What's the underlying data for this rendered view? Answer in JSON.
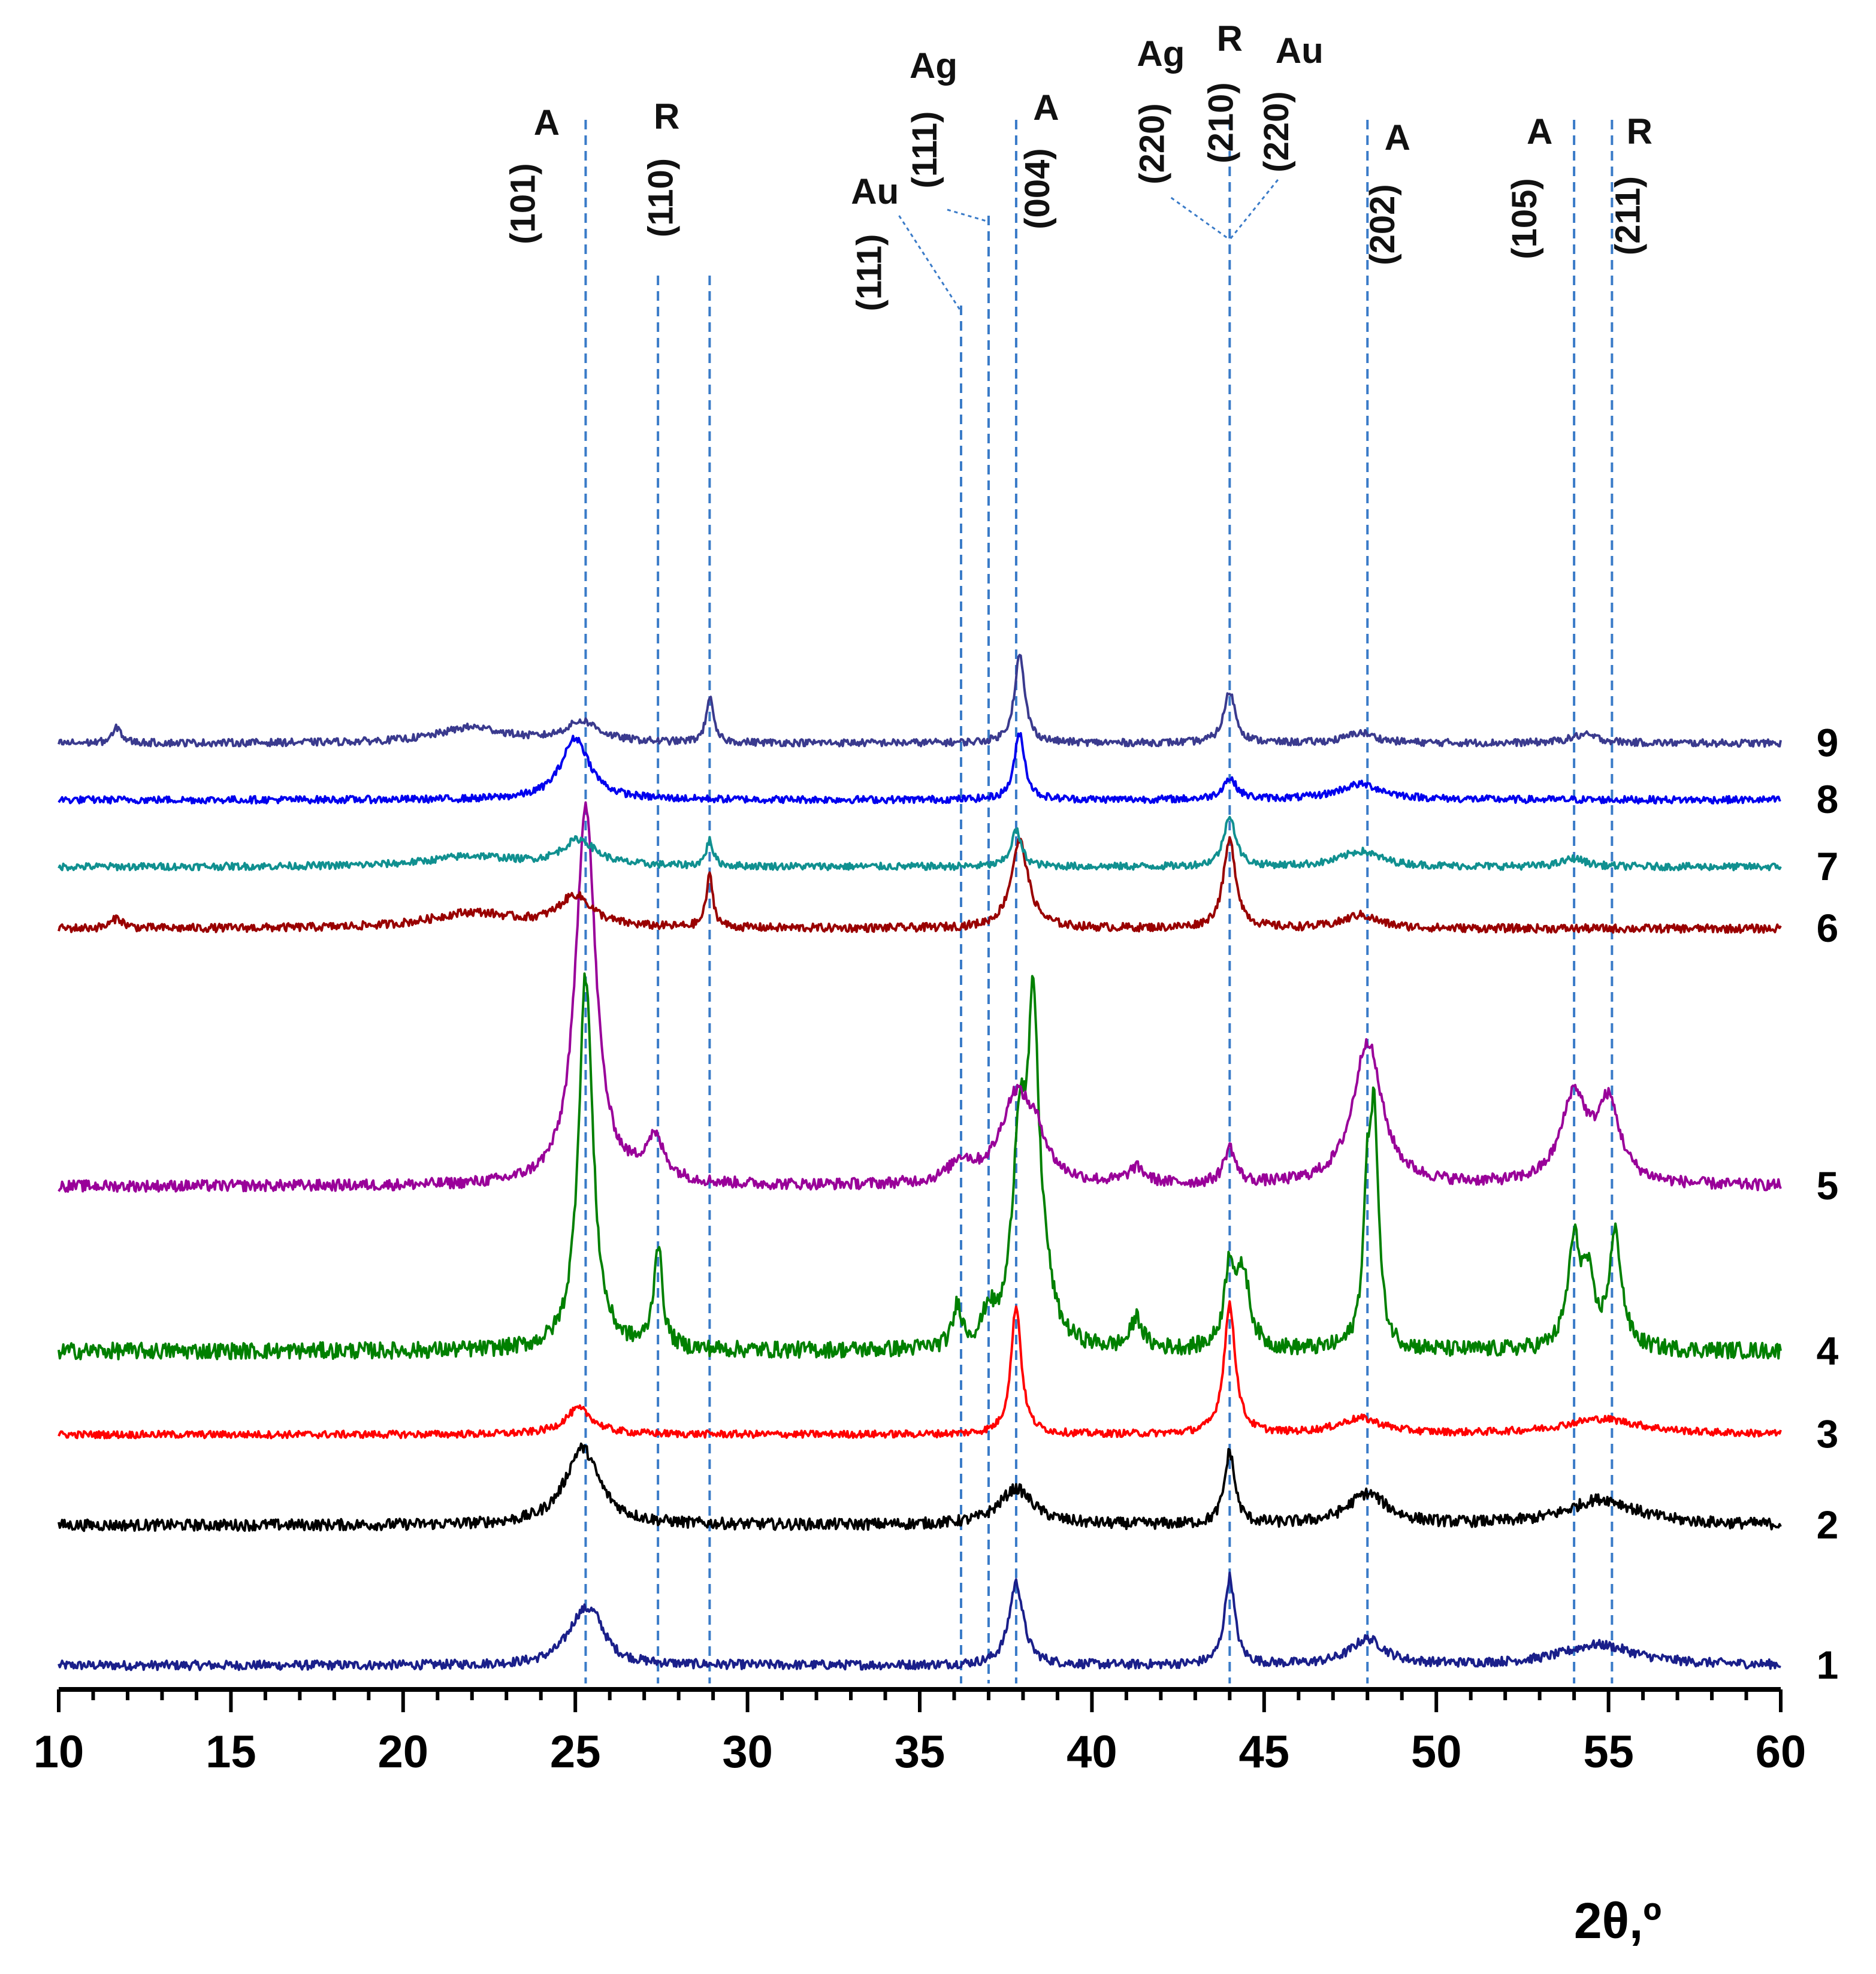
{
  "chart_data": {
    "type": "line",
    "title": "",
    "xlabel": "2θ,º",
    "ylabel": "",
    "xlim": [
      10,
      60
    ],
    "xticks": [
      10,
      15,
      20,
      25,
      30,
      35,
      40,
      45,
      50,
      55,
      60
    ],
    "grid": false,
    "series": [
      {
        "name": "1",
        "color": "#1a1f8a",
        "baseline": 0.0,
        "noise": 0.9,
        "peaks": [
          [
            25.2,
            4.5,
            0.55
          ],
          [
            25.6,
            2.0,
            0.35
          ],
          [
            37.8,
            8.0,
            0.25
          ],
          [
            44.0,
            8.5,
            0.18
          ],
          [
            48.0,
            2.5,
            0.6
          ],
          [
            54.7,
            2.0,
            1.3
          ]
        ]
      },
      {
        "name": "2",
        "color": "#000000",
        "baseline": 13.6,
        "noise": 1.1,
        "peaks": [
          [
            25.2,
            7.5,
            0.6
          ],
          [
            37.8,
            3.5,
            0.6
          ],
          [
            44.0,
            7.0,
            0.18
          ],
          [
            48.0,
            3.0,
            0.7
          ],
          [
            54.8,
            2.5,
            1.2
          ]
        ]
      },
      {
        "name": "3",
        "color": "#ff0000",
        "baseline": 22.4,
        "noise": 0.7,
        "peaks": [
          [
            25.1,
            2.5,
            0.5
          ],
          [
            37.8,
            12.5,
            0.18
          ],
          [
            44.0,
            12.5,
            0.2
          ],
          [
            47.8,
            1.5,
            0.8
          ],
          [
            54.8,
            1.5,
            1.4
          ]
        ]
      },
      {
        "name": "4",
        "color": "#008000",
        "baseline": 30.5,
        "noise": 1.6,
        "peaks": [
          [
            25.3,
            36.5,
            0.25
          ],
          [
            27.4,
            10.0,
            0.15
          ],
          [
            36.1,
            4.0,
            0.15
          ],
          [
            37.0,
            3.0,
            0.2
          ],
          [
            37.9,
            20.0,
            0.25
          ],
          [
            38.3,
            28.0,
            0.18
          ],
          [
            38.6,
            5.0,
            0.3
          ],
          [
            41.3,
            3.0,
            0.2
          ],
          [
            44.0,
            8.0,
            0.18
          ],
          [
            44.4,
            7.0,
            0.22
          ],
          [
            48.0,
            13.0,
            0.15
          ],
          [
            48.2,
            20.0,
            0.15
          ],
          [
            54.0,
            10.0,
            0.22
          ],
          [
            54.4,
            6.0,
            0.2
          ],
          [
            55.2,
            11.0,
            0.22
          ]
        ]
      },
      {
        "name": "5",
        "color": "#990099",
        "baseline": 46.5,
        "noise": 1.1,
        "peaks": [
          [
            25.3,
            37.0,
            0.35
          ],
          [
            27.3,
            4.0,
            0.35
          ],
          [
            36.2,
            2.0,
            0.4
          ],
          [
            37.8,
            8.5,
            0.55
          ],
          [
            38.4,
            3.0,
            0.35
          ],
          [
            41.3,
            1.5,
            0.3
          ],
          [
            44.0,
            3.5,
            0.2
          ],
          [
            48.0,
            14.0,
            0.5
          ],
          [
            54.0,
            8.5,
            0.45
          ],
          [
            55.0,
            7.5,
            0.4
          ]
        ]
      },
      {
        "name": "6",
        "color": "#990000",
        "baseline": 71.5,
        "noise": 0.8,
        "peaks": [
          [
            11.7,
            1.0,
            0.2
          ],
          [
            22.0,
            1.5,
            1.5
          ],
          [
            25.0,
            3.0,
            0.6
          ],
          [
            28.9,
            5.0,
            0.12
          ],
          [
            37.9,
            8.5,
            0.3
          ],
          [
            44.0,
            8.5,
            0.22
          ],
          [
            47.8,
            1.3,
            0.6
          ]
        ]
      },
      {
        "name": "7",
        "color": "#109090",
        "baseline": 77.5,
        "noise": 0.7,
        "peaks": [
          [
            22.0,
            1.0,
            1.5
          ],
          [
            25.1,
            2.5,
            0.6
          ],
          [
            28.9,
            2.5,
            0.12
          ],
          [
            37.8,
            3.5,
            0.18
          ],
          [
            44.0,
            5.0,
            0.2
          ],
          [
            47.8,
            1.5,
            0.7
          ],
          [
            54.0,
            0.8,
            0.4
          ]
        ]
      },
      {
        "name": "8",
        "color": "#0000ee",
        "baseline": 84.0,
        "noise": 0.7,
        "peaks": [
          [
            25.0,
            6.0,
            0.5
          ],
          [
            37.9,
            6.5,
            0.18
          ],
          [
            44.0,
            2.0,
            0.25
          ],
          [
            47.8,
            1.5,
            0.8
          ]
        ]
      },
      {
        "name": "9",
        "color": "#3a3a8e",
        "baseline": 89.5,
        "noise": 0.7,
        "peaks": [
          [
            11.7,
            1.5,
            0.15
          ],
          [
            22.0,
            1.5,
            1.2
          ],
          [
            25.2,
            2.0,
            0.6
          ],
          [
            28.9,
            4.5,
            0.12
          ],
          [
            37.9,
            8.5,
            0.18
          ],
          [
            44.0,
            5.0,
            0.2
          ],
          [
            47.8,
            1.0,
            0.5
          ],
          [
            54.3,
            0.8,
            0.5
          ]
        ]
      }
    ],
    "reference_lines": [
      {
        "x": 25.3,
        "phase": "A",
        "hkl": "(101)"
      },
      {
        "x": 27.4,
        "phase": "R",
        "hkl": "(110)"
      },
      {
        "x": 28.9,
        "phase": "",
        "hkl": ""
      },
      {
        "x": 36.2,
        "phase": "Au",
        "hkl": "(111)"
      },
      {
        "x": 37.0,
        "phase": "Ag",
        "hkl": "(111)"
      },
      {
        "x": 37.8,
        "phase": "A",
        "hkl": "(004)"
      },
      {
        "x": 44.0,
        "phase": "Ag",
        "hkl": "(220)"
      },
      {
        "x": 44.0,
        "phase": "R",
        "hkl": "(210)"
      },
      {
        "x": 44.0,
        "phase": "Au",
        "hkl": "(220)"
      },
      {
        "x": 48.0,
        "phase": "A",
        "hkl": "(202)"
      },
      {
        "x": 54.0,
        "phase": "A",
        "hkl": "(105)"
      },
      {
        "x": 55.1,
        "phase": "R",
        "hkl": "(211)"
      }
    ]
  }
}
